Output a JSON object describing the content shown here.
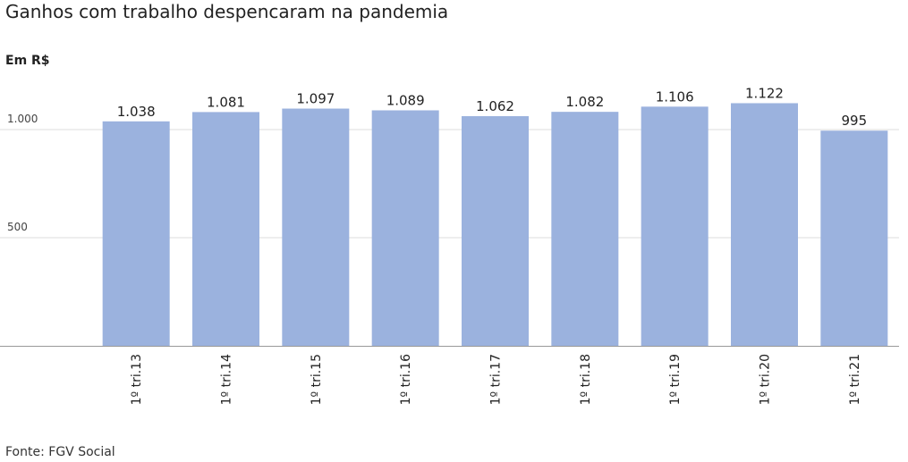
{
  "chart_data": {
    "type": "bar",
    "title": "Ganhos com trabalho despencaram na pandemia",
    "subtitle": "Em R$",
    "source": "Fonte: FGV Social",
    "categories": [
      "1º tri.13",
      "1º tri.14",
      "1º tri.15",
      "1º tri.16",
      "1º tri.17",
      "1º tri.18",
      "1º tri.19",
      "1º tri.20",
      "1º tri.21"
    ],
    "values": [
      1038,
      1081,
      1097,
      1089,
      1062,
      1082,
      1106,
      1122,
      995
    ],
    "value_labels": [
      "1.038",
      "1.081",
      "1.097",
      "1.089",
      "1.062",
      "1.082",
      "1.106",
      "1.122",
      "995"
    ],
    "color": "#9bb2de",
    "ylim": [
      0,
      1200
    ],
    "yticks": [
      500,
      {
        "value": 1000,
        "label": "1.000"
      }
    ],
    "grid": true
  }
}
